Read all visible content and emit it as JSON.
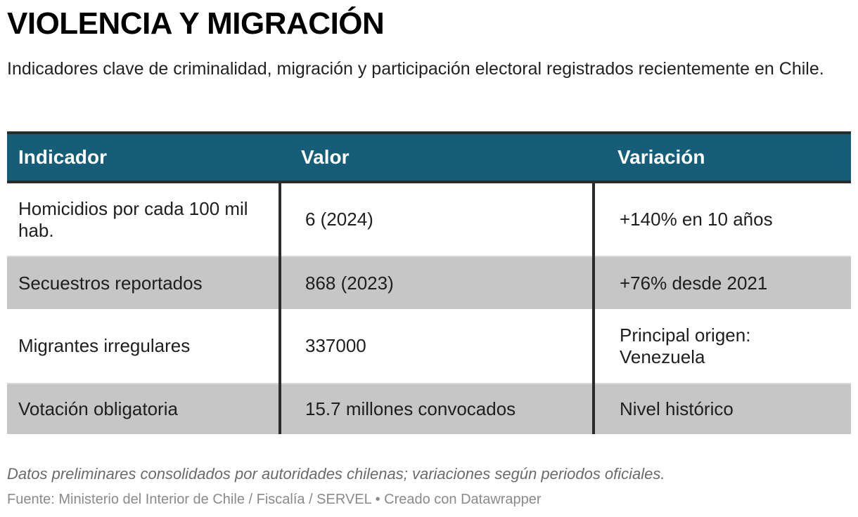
{
  "header": {
    "title": "VIOLENCIA Y MIGRACIÓN",
    "subtitle": "Indicadores clave de criminalidad, migración y participación electoral registrados recientemente en Chile."
  },
  "table": {
    "columns": [
      "Indicador",
      "Valor",
      "Variación"
    ],
    "rows": [
      {
        "indicador": "Homicidios por cada 100 mil hab.",
        "valor": "6 (2024)",
        "variacion": "+140% en 10 años"
      },
      {
        "indicador": "Secuestros reportados",
        "valor": "868 (2023)",
        "variacion": "+76% desde 2021"
      },
      {
        "indicador": "Migrantes irregulares",
        "valor": "337000",
        "variacion": "Principal origen: Venezuela"
      },
      {
        "indicador": "Votación obligatoria",
        "valor": "15.7 millones convocados",
        "variacion": "Nivel histórico"
      }
    ],
    "colors": {
      "header_bg": "#165e78",
      "stripe_bg": "#c6c6c6",
      "row_bg": "#ffffff"
    }
  },
  "footer": {
    "note": "Datos preliminares consolidados por autoridades chilenas; variaciones según periodos oficiales.",
    "source": "Fuente: Ministerio del Interior de Chile / Fiscalía / SERVEL • Creado con Datawrapper"
  },
  "chart_data": {
    "type": "table",
    "title": "VIOLENCIA Y MIGRACIÓN",
    "subtitle": "Indicadores clave de criminalidad, migración y participación electoral registrados recientemente en Chile.",
    "columns": [
      "Indicador",
      "Valor",
      "Variación"
    ],
    "rows": [
      [
        "Homicidios por cada 100 mil hab.",
        "6 (2024)",
        "+140% en 10 años"
      ],
      [
        "Secuestros reportados",
        "868 (2023)",
        "+76% desde 2021"
      ],
      [
        "Migrantes irregulares",
        "337000",
        "Principal origen: Venezuela"
      ],
      [
        "Votación obligatoria",
        "15.7 millones convocados",
        "Nivel histórico"
      ]
    ]
  }
}
